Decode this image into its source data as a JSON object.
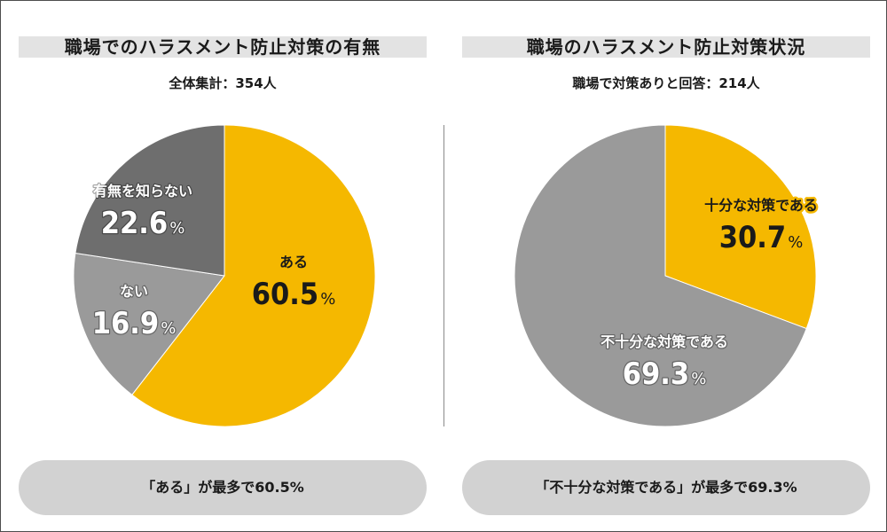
{
  "colors": {
    "yellow": "#F5B800",
    "gray_mid": "#9A9A9A",
    "gray_dark": "#6E6E6E",
    "white": "#FFFFFF",
    "black": "#1A1A1A"
  },
  "left": {
    "title": "職場でのハラスメント防止対策の有無",
    "subtitle": "全体集計：354人",
    "summary": "「ある」が最多で60.5%"
  },
  "right": {
    "title": "職場のハラスメント防止対策状況",
    "subtitle": "職場で対策ありと回答：214人",
    "summary": "「不十分な対策である」が最多で69.3%"
  },
  "chart_data": [
    {
      "type": "pie",
      "title": "職場でのハラスメント防止対策の有無",
      "subtitle": "全体集計：354人",
      "unit": "%",
      "slices": [
        {
          "label": "ある",
          "value": 60.5,
          "value_text": "60.5",
          "color": "#F5B800"
        },
        {
          "label": "ない",
          "value": 16.9,
          "value_text": "16.9",
          "color": "#9A9A9A"
        },
        {
          "label": "有無を知らない",
          "value": 22.6,
          "value_text": "22.6",
          "color": "#6E6E6E"
        }
      ]
    },
    {
      "type": "pie",
      "title": "職場のハラスメント防止対策状況",
      "subtitle": "職場で対策ありと回答：214人",
      "unit": "%",
      "slices": [
        {
          "label": "十分な対策である",
          "value": 30.7,
          "value_text": "30.7",
          "color": "#F5B800"
        },
        {
          "label": "不十分な対策である",
          "value": 69.3,
          "value_text": "69.3",
          "color": "#9A9A9A"
        }
      ]
    }
  ]
}
